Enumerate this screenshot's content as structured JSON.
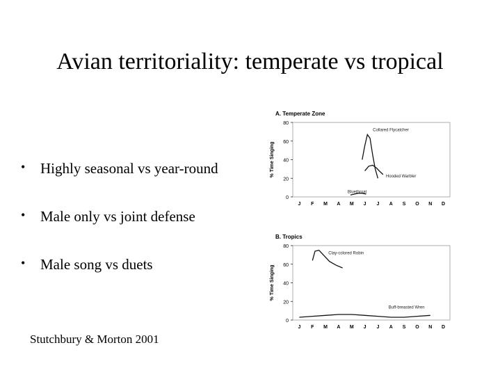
{
  "slide": {
    "title": "Avian territoriality: temperate vs tropical",
    "bullets": [
      "Highly seasonal vs year-round",
      "Male only vs joint defense",
      "Male song vs duets"
    ],
    "citation": "Stutchbury & Morton 2001"
  },
  "chart_data": [
    {
      "type": "line",
      "title": "A. Temperate Zone",
      "ylabel": "% Time Singing",
      "categories": [
        "J",
        "F",
        "M",
        "A",
        "M",
        "J",
        "J",
        "A",
        "S",
        "O",
        "N",
        "D"
      ],
      "ylim": [
        0,
        80
      ],
      "yticks": [
        0,
        20,
        40,
        60,
        80
      ],
      "series": [
        {
          "name": "Collared Flycatcher",
          "x": [
            4.8,
            5.0,
            5.2,
            5.4,
            5.6,
            5.8,
            6.0
          ],
          "values": [
            40,
            55,
            67,
            63,
            45,
            30,
            20
          ]
        },
        {
          "name": "Hooded Warbler",
          "x": [
            5.0,
            5.3,
            5.6,
            5.9,
            6.1,
            6.4
          ],
          "values": [
            28,
            33,
            34,
            31,
            28,
            24
          ]
        },
        {
          "name": "Bluethroat",
          "x": [
            3.9,
            4.2,
            4.5,
            4.8,
            5.1
          ],
          "values": [
            2,
            3,
            4,
            4,
            3
          ]
        }
      ]
    },
    {
      "type": "line",
      "title": "B. Tropics",
      "ylabel": "% Time Singing",
      "categories": [
        "J",
        "F",
        "M",
        "A",
        "M",
        "J",
        "J",
        "A",
        "S",
        "O",
        "N",
        "D"
      ],
      "ylim": [
        0,
        80
      ],
      "yticks": [
        0,
        20,
        40,
        60,
        80
      ],
      "series": [
        {
          "name": "Clay-colored Robin",
          "x": [
            1.0,
            1.2,
            1.5,
            1.9,
            2.3,
            2.8,
            3.3
          ],
          "values": [
            64,
            74,
            75,
            69,
            63,
            59,
            56
          ]
        },
        {
          "name": "Buff-breasted Wren",
          "x": [
            0.0,
            1.0,
            2.0,
            3.0,
            4.0,
            5.0,
            6.0,
            7.0,
            8.0,
            9.0,
            10.0
          ],
          "values": [
            3,
            4,
            5,
            6,
            6,
            5,
            4,
            3,
            3,
            4,
            5
          ]
        }
      ]
    }
  ]
}
